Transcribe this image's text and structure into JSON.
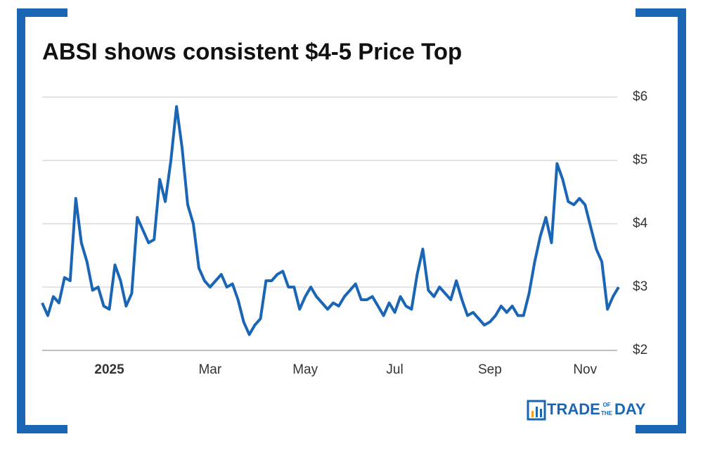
{
  "chart_data": {
    "type": "line",
    "title": "ABSI shows consistent $4-5 Price Top",
    "categories": [
      null,
      null,
      null,
      null,
      null,
      null,
      null,
      null,
      null,
      null,
      null,
      null,
      "2025",
      null,
      null,
      null,
      null,
      null,
      null,
      null,
      null,
      null,
      null,
      null,
      null,
      null,
      null,
      null,
      null,
      null,
      "Mar",
      null,
      null,
      null,
      null,
      null,
      null,
      null,
      null,
      null,
      null,
      null,
      null,
      null,
      null,
      null,
      null,
      "May",
      null,
      null,
      null,
      null,
      null,
      null,
      null,
      null,
      null,
      null,
      null,
      null,
      null,
      null,
      null,
      "Jul",
      null,
      null,
      null,
      null,
      null,
      null,
      null,
      null,
      null,
      null,
      null,
      null,
      null,
      null,
      null,
      null,
      "Sep",
      null,
      null,
      null,
      null,
      null,
      null,
      null,
      null,
      null,
      null,
      null,
      null,
      null,
      null,
      null,
      null,
      "Nov",
      null,
      null,
      null,
      null,
      null,
      null
    ],
    "series": [
      {
        "name": "ABSI",
        "color": "#1a66b5",
        "values": [
          2.75,
          2.55,
          2.85,
          2.75,
          3.15,
          3.1,
          4.4,
          3.7,
          3.4,
          2.95,
          3.0,
          2.7,
          2.65,
          3.35,
          3.1,
          2.7,
          2.9,
          4.1,
          3.9,
          3.7,
          3.75,
          4.7,
          4.35,
          5.0,
          5.85,
          5.2,
          4.3,
          4.0,
          3.3,
          3.1,
          3.0,
          3.1,
          3.2,
          3.0,
          3.05,
          2.8,
          2.45,
          2.25,
          2.4,
          2.5,
          3.1,
          3.1,
          3.2,
          3.25,
          3.0,
          3.0,
          2.65,
          2.85,
          3.0,
          2.85,
          2.75,
          2.65,
          2.75,
          2.7,
          2.85,
          2.95,
          3.05,
          2.8,
          2.8,
          2.85,
          2.7,
          2.55,
          2.75,
          2.6,
          2.85,
          2.7,
          2.65,
          3.2,
          3.6,
          2.95,
          2.85,
          3.0,
          2.9,
          2.8,
          3.1,
          2.8,
          2.55,
          2.6,
          2.5,
          2.4,
          2.45,
          2.55,
          2.7,
          2.6,
          2.7,
          2.55,
          2.55,
          2.9,
          3.4,
          3.8,
          4.1,
          3.7,
          4.95,
          4.7,
          4.35,
          4.3,
          4.4,
          4.3,
          3.95,
          3.6,
          3.4,
          2.65,
          2.85,
          3.0
        ]
      }
    ],
    "ylim": [
      2,
      6
    ],
    "yticks": [
      {
        "value": 2,
        "label": "$2"
      },
      {
        "value": 3,
        "label": "$3"
      },
      {
        "value": 4,
        "label": "$4"
      },
      {
        "value": 5,
        "label": "$5"
      },
      {
        "value": 6,
        "label": "$6"
      }
    ],
    "grid": true
  },
  "logo": {
    "word1": "TRADE",
    "small1": "OF",
    "small2": "THE",
    "word2": "DAY"
  }
}
